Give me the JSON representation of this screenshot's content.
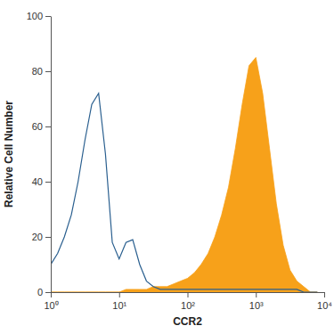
{
  "chart_data": {
    "type": "line",
    "x_label": "CCR2",
    "y_label": "Relative Cell Number",
    "log": "x",
    "grid": false,
    "xlim": [
      1,
      10000
    ],
    "xticks": [
      {
        "value": 1,
        "label": "10⁰"
      },
      {
        "value": 10,
        "label": "10¹"
      },
      {
        "value": 100,
        "label": "10²"
      },
      {
        "value": 1000,
        "label": "10³"
      },
      {
        "value": 10000,
        "label": "10⁴"
      }
    ],
    "ylim": [
      0,
      100
    ],
    "yticks": [
      0,
      20,
      40,
      60,
      80,
      100
    ],
    "x": [
      1,
      1.26,
      1.58,
      2,
      2.51,
      3.16,
      3.98,
      5.01,
      6.31,
      7.94,
      10,
      12.6,
      15.8,
      20,
      25.1,
      31.6,
      39.8,
      50.1,
      63.1,
      79.4,
      100,
      126,
      158,
      200,
      251,
      316,
      398,
      501,
      631,
      794,
      1000,
      1259,
      1585,
      1995,
      2512,
      3162,
      3981,
      5012,
      6310,
      7943
    ],
    "series": [
      {
        "type": "line",
        "color": "#2a5f8f",
        "values": [
          10,
          14,
          20,
          28,
          40,
          55,
          68,
          72,
          50,
          18,
          12,
          18,
          19,
          10,
          4,
          2,
          1,
          1,
          1,
          1,
          1,
          1,
          1,
          1,
          1,
          1,
          1,
          1,
          1,
          1,
          1,
          1,
          1,
          1,
          1,
          1,
          1,
          0,
          0,
          0
        ]
      },
      {
        "type": "area",
        "color": "#f7a11a",
        "values": [
          0,
          0,
          0,
          0,
          0,
          0,
          0,
          0,
          0,
          0,
          0,
          1,
          1,
          1,
          1,
          2,
          2,
          2,
          3,
          4,
          5,
          7,
          10,
          14,
          20,
          28,
          38,
          52,
          68,
          82,
          85,
          72,
          52,
          32,
          17,
          8,
          4,
          2,
          0,
          0
        ]
      }
    ]
  }
}
